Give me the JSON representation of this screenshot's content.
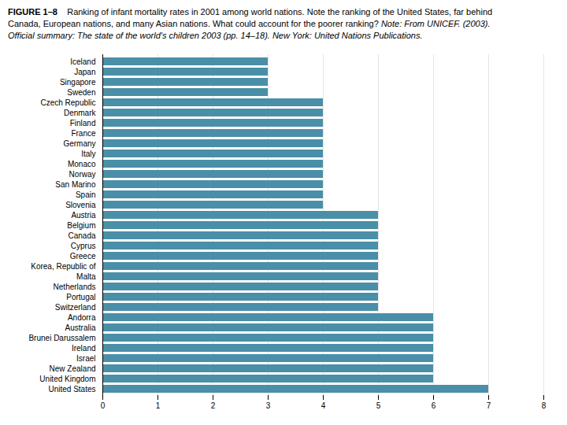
{
  "chart_data": {
    "type": "bar",
    "orientation": "horizontal",
    "title": "FIGURE 1–8",
    "subtitle": [
      "    Ranking of infant mortality rates in 2001 among world nations. Note the ranking of the United States, far behind",
      "Canada, European nations, and many Asian nations. What could account for the poorer ranking? "
    ],
    "annotations": [
      "Note: From UNICEF. (2003).",
      "Official summary: The state of the world's children 2003 (pp. 14–18). New York: United Nations Publications."
    ],
    "categories": [
      "Iceland",
      "Japan",
      "Singapore",
      "Sweden",
      "Czech Republic",
      "Denmark",
      "Finland",
      "France",
      "Germany",
      "Italy",
      "Monaco",
      "Norway",
      "San Marino",
      "Spain",
      "Slovenia",
      "Austria",
      "Belgium",
      "Canada",
      "Cyprus",
      "Greece",
      "Korea, Republic of",
      "Malta",
      "Netherlands",
      "Portugal",
      "Switzerland",
      "Andorra",
      "Australia",
      "Brunei Darussalem",
      "Ireland",
      "Israel",
      "New Zealand",
      "United Kingdom",
      "United States"
    ],
    "values": [
      3,
      3,
      3,
      3,
      4,
      4,
      4,
      4,
      4,
      4,
      4,
      4,
      4,
      4,
      4,
      5,
      5,
      5,
      5,
      5,
      5,
      5,
      5,
      5,
      5,
      6,
      6,
      6,
      6,
      6,
      6,
      6,
      7
    ],
    "color": "#4a8fa8",
    "xlim": [
      0,
      8
    ],
    "xticks": [
      0,
      1,
      2,
      3,
      4,
      5,
      6,
      7,
      8
    ],
    "grid": true
  }
}
